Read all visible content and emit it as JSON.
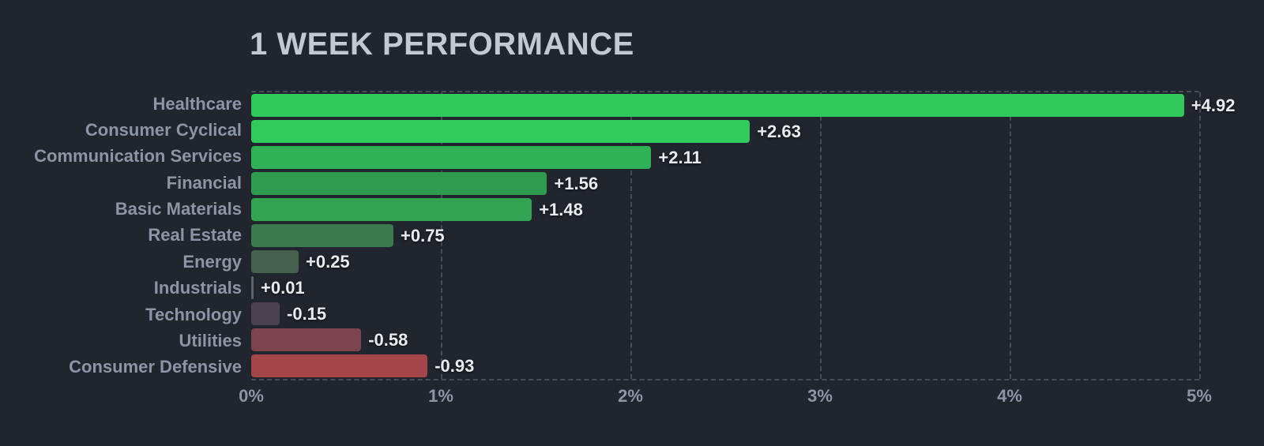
{
  "header": {
    "title": "1 WEEK PERFORMANCE"
  },
  "colors": {
    "background": "#21252e",
    "title_text": "#c3c8d2",
    "category_label": "#8c94a6",
    "value_label": "#e9ebef",
    "tick_label": "#8c94a6",
    "gridline": "#454b57"
  },
  "chart_data": {
    "type": "bar",
    "orientation": "horizontal",
    "title": "1 WEEK PERFORMANCE",
    "categories": [
      "Healthcare",
      "Consumer Cyclical",
      "Communication Services",
      "Financial",
      "Basic Materials",
      "Real Estate",
      "Energy",
      "Industrials",
      "Technology",
      "Utilities",
      "Consumer Defensive"
    ],
    "values": [
      4.92,
      2.63,
      2.11,
      1.56,
      1.48,
      0.75,
      0.25,
      0.01,
      -0.15,
      -0.58,
      -0.93
    ],
    "value_labels": [
      "+4.92",
      "+2.63",
      "+2.11",
      "+1.56",
      "+1.48",
      "+0.75",
      "+0.25",
      "+0.01",
      "-0.15",
      "-0.58",
      "-0.93"
    ],
    "bar_colors": [
      "#2fca5b",
      "#31ca5d",
      "#2fb255",
      "#2f9b4e",
      "#32a253",
      "#3b7a4e",
      "#46604f",
      "#5d6467",
      "#4b4251",
      "#7d4450",
      "#a34549"
    ],
    "x_ticks": [
      "0%",
      "1%",
      "2%",
      "3%",
      "4%",
      "5%"
    ],
    "x_tick_values": [
      0,
      1,
      2,
      3,
      4,
      5
    ],
    "xlim": [
      0,
      5
    ],
    "xlabel": "",
    "ylabel": "",
    "grid": "vertical-dashed",
    "legend": false,
    "note": "negative values drawn rightward from zero by magnitude, colored red"
  }
}
